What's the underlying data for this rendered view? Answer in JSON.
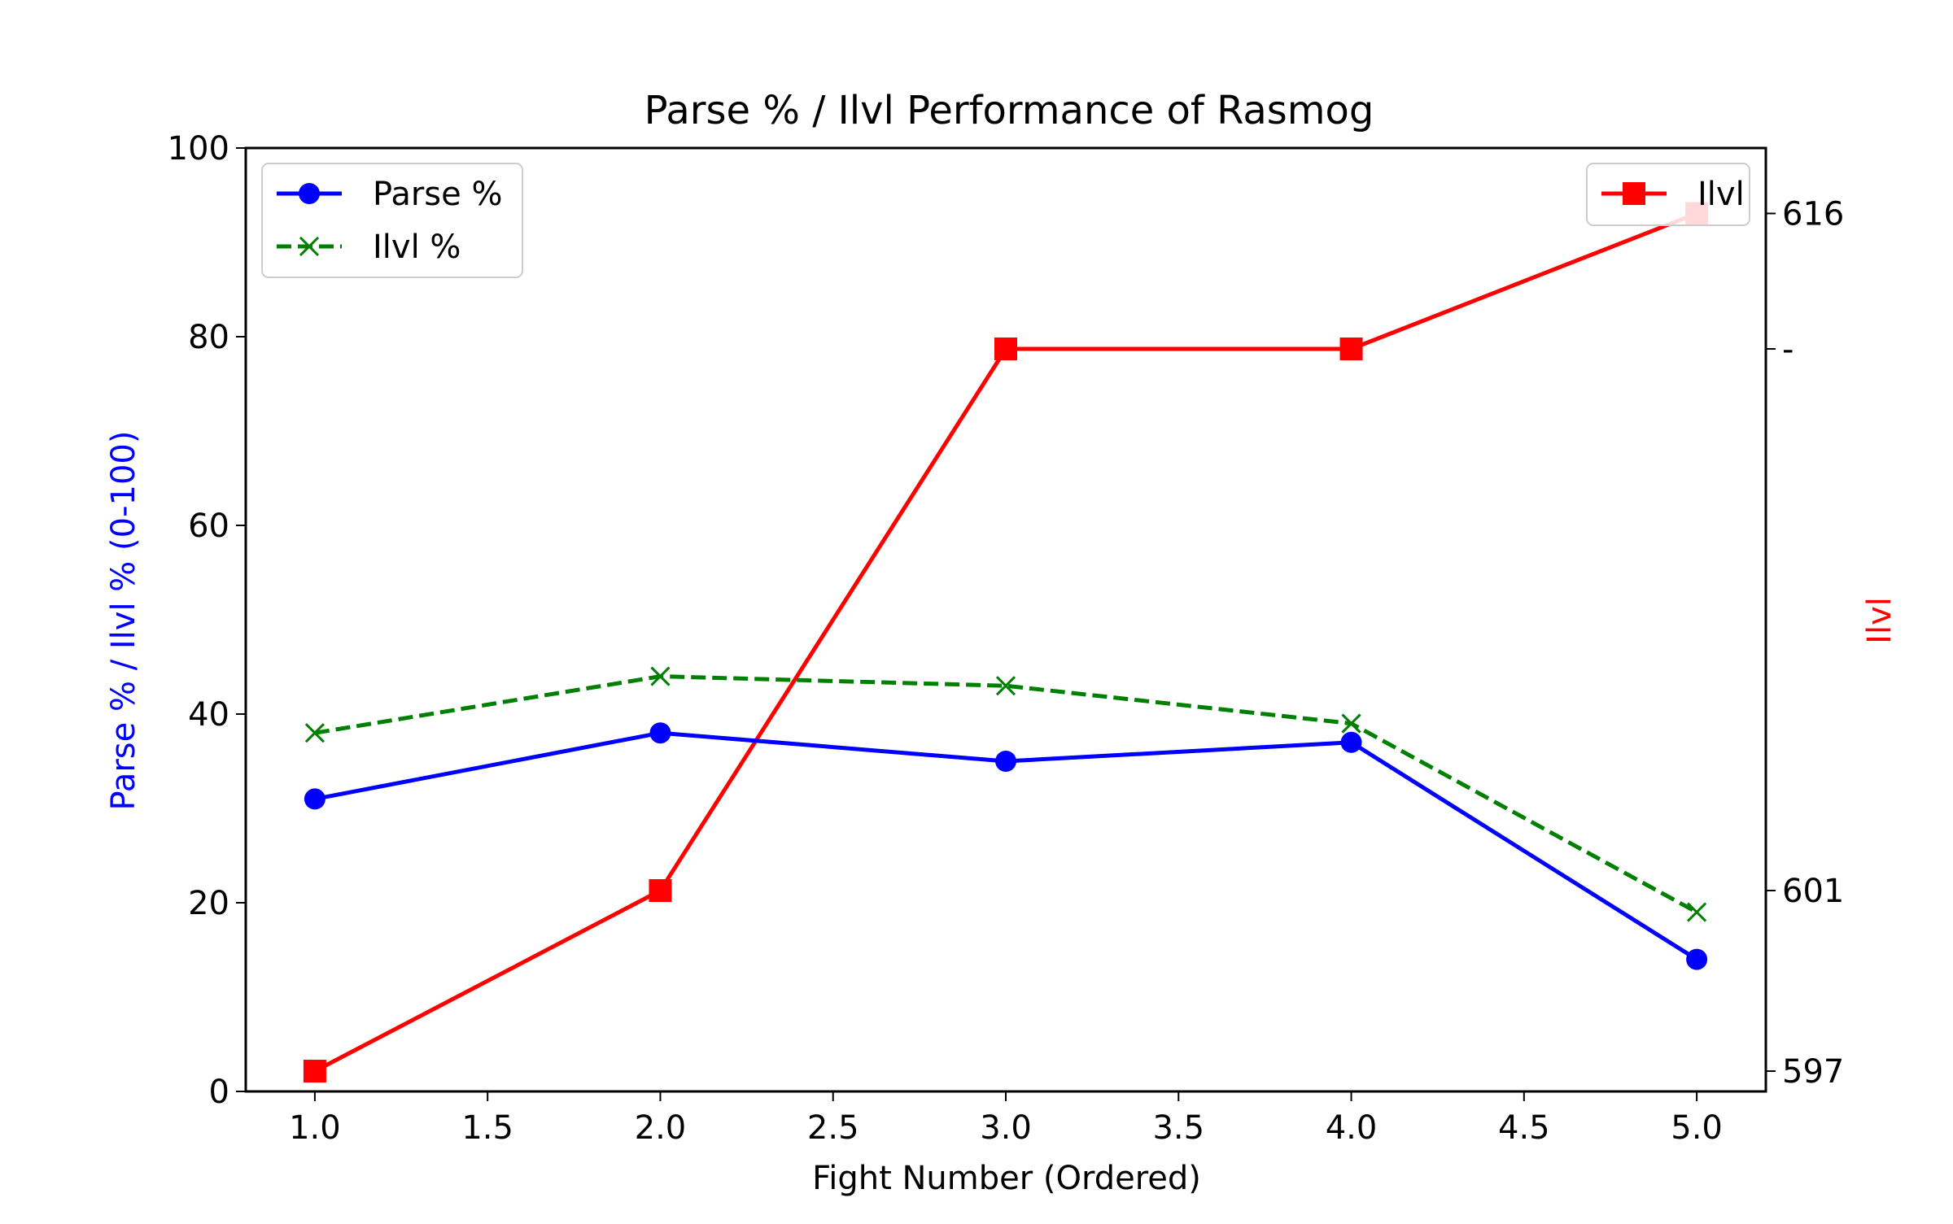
{
  "chart_data": {
    "type": "line",
    "title": "Parse % / Ilvl Performance of Rasmog",
    "xlabel": "Fight Number (Ordered)",
    "ylabel_left": "Parse % / Ilvl % (0-100)",
    "ylabel_right": "Ilvl",
    "xlim": [
      0.8,
      5.2
    ],
    "ylim_left": [
      0,
      100
    ],
    "ylim_right": [
      596.55,
      617.45
    ],
    "x": [
      1,
      2,
      3,
      4,
      5
    ],
    "x_ticks": [
      1.0,
      1.5,
      2.0,
      2.5,
      3.0,
      3.5,
      4.0,
      4.5,
      5.0
    ],
    "x_tick_labels": [
      "1.0",
      "1.5",
      "2.0",
      "2.5",
      "3.0",
      "3.5",
      "4.0",
      "4.5",
      "5.0"
    ],
    "y_left_ticks": [
      0,
      20,
      40,
      60,
      80,
      100
    ],
    "y_left_tick_labels": [
      "0",
      "20",
      "40",
      "60",
      "80",
      "100"
    ],
    "y_right_ticks": [
      597,
      601,
      613,
      616
    ],
    "y_right_tick_labels": [
      "597",
      "601",
      "-",
      "616"
    ],
    "grid": false,
    "series": [
      {
        "name": "Parse %",
        "axis": "left",
        "values": [
          31,
          38,
          35,
          37,
          14
        ],
        "color": "#0000ff",
        "marker": "circle",
        "linestyle": "solid"
      },
      {
        "name": "Ilvl %",
        "axis": "left",
        "values": [
          38,
          44,
          43,
          39,
          19
        ],
        "color": "#008000",
        "marker": "x",
        "linestyle": "dashed"
      },
      {
        "name": "Ilvl",
        "axis": "right",
        "values": [
          597,
          601,
          613,
          613,
          616
        ],
        "color": "#ff0000",
        "marker": "square",
        "linestyle": "solid"
      }
    ],
    "legends": [
      {
        "placement": "upper-left",
        "entries": [
          "Parse %",
          "Ilvl %"
        ]
      },
      {
        "placement": "upper-right",
        "entries": [
          "Ilvl"
        ]
      }
    ]
  }
}
